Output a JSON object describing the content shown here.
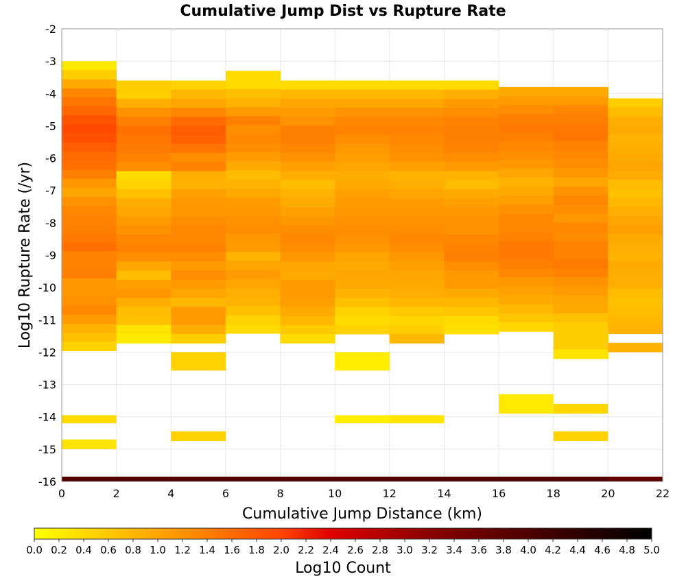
{
  "chart_data": {
    "type": "heatmap",
    "title": "Cumulative Jump Dist vs Rupture Rate",
    "xlabel": "Cumulative Jump Distance (km)",
    "ylabel": "Log10 Rupture Rate (/yr)",
    "xlim": [
      0,
      22
    ],
    "ylim": [
      -16,
      -2
    ],
    "x_ticks": [
      0,
      2,
      4,
      6,
      8,
      10,
      12,
      14,
      16,
      18,
      20,
      22
    ],
    "y_ticks": [
      -2,
      -3,
      -4,
      -5,
      -6,
      -7,
      -8,
      -9,
      -10,
      -11,
      -12,
      -13,
      -14,
      -15,
      -16
    ],
    "grid": true,
    "colorbar": {
      "label": "Log10 Count",
      "range": [
        0,
        5
      ],
      "ticks": [
        "0.0",
        "0.2",
        "0.4",
        "0.6",
        "0.8",
        "1.0",
        "1.2",
        "1.4",
        "1.6",
        "1.8",
        "2.0",
        "2.2",
        "2.4",
        "2.6",
        "2.8",
        "3.0",
        "3.2",
        "3.4",
        "3.6",
        "3.8",
        "4.0",
        "4.2",
        "4.4",
        "4.6",
        "4.8",
        "5.0"
      ],
      "stops": [
        {
          "v": 0.0,
          "c": "#ffff00"
        },
        {
          "v": 1.0,
          "c": "#ffa500"
        },
        {
          "v": 2.0,
          "c": "#ff4500"
        },
        {
          "v": 2.4,
          "c": "#e00000"
        },
        {
          "v": 3.2,
          "c": "#8b0000"
        },
        {
          "v": 5.0,
          "c": "#000000"
        }
      ]
    },
    "column_width_km": 2,
    "bin_height_log": 0.28,
    "columns": [
      {
        "x0": 0,
        "y_top": -3.0,
        "values": [
          0.25,
          0.55,
          0.95,
          1.3,
          1.5,
          1.65,
          1.85,
          1.95,
          1.9,
          1.75,
          1.6,
          1.55,
          1.4,
          1.15,
          1.0,
          1.2,
          1.3,
          1.35,
          1.4,
          1.45,
          1.55,
          1.35,
          1.35,
          1.4,
          1.15,
          1.15,
          1.2,
          1.3,
          1.1,
          0.85,
          0.7,
          0.5
        ]
      },
      {
        "x0": 2,
        "y_top": -3.6,
        "values": [
          0.55,
          0.55,
          0.9,
          1.2,
          1.4,
          1.55,
          1.5,
          1.45,
          1.35,
          1.25,
          0.4,
          0.5,
          0.7,
          0.9,
          1.0,
          1.1,
          1.2,
          1.3,
          1.35,
          1.25,
          1.0,
          0.75,
          1.05,
          1.15,
          0.9,
          0.75,
          0.7,
          0.3,
          0.25
        ]
      },
      {
        "x0": 4,
        "y_top": -3.6,
        "values": [
          0.5,
          0.8,
          1.0,
          1.3,
          1.6,
          1.75,
          1.7,
          1.5,
          1.25,
          1.35,
          0.9,
          0.85,
          1.05,
          1.15,
          1.15,
          1.25,
          1.3,
          1.3,
          1.35,
          1.25,
          1.1,
          1.25,
          1.1,
          1.0,
          0.8,
          1.1,
          1.1,
          0.9,
          0.55,
          null,
          0.5,
          0.5
        ]
      },
      {
        "x0": 6,
        "y_top": -3.3,
        "values": [
          0.4,
          0.4,
          0.7,
          0.85,
          1.1,
          1.4,
          1.25,
          1.3,
          1.25,
          1.1,
          0.95,
          0.75,
          0.85,
          0.95,
          1.1,
          1.15,
          1.2,
          1.25,
          1.15,
          1.1,
          0.85,
          1.0,
          1.1,
          1.0,
          0.9,
          0.85,
          0.7,
          0.5,
          0.4
        ]
      },
      {
        "x0": 8,
        "y_top": -3.6,
        "values": [
          0.4,
          0.8,
          1.0,
          1.1,
          1.2,
          1.4,
          1.4,
          1.3,
          1.2,
          1.05,
          0.9,
          0.75,
          0.85,
          0.95,
          1.05,
          1.15,
          1.25,
          1.3,
          1.25,
          1.15,
          1.0,
          0.95,
          1.1,
          1.1,
          1.05,
          0.95,
          0.8,
          0.6,
          0.4
        ]
      },
      {
        "x0": 10,
        "y_top": -3.6,
        "values": [
          0.4,
          0.8,
          1.0,
          1.2,
          1.3,
          1.35,
          1.25,
          1.15,
          1.05,
          1.0,
          0.9,
          0.95,
          1.05,
          1.1,
          1.15,
          1.2,
          1.25,
          1.2,
          1.15,
          1.0,
          0.95,
          1.0,
          0.95,
          0.85,
          0.7,
          0.5,
          0.4,
          0.5,
          null,
          null,
          0.2,
          0.2
        ]
      },
      {
        "x0": 12,
        "y_top": -3.6,
        "values": [
          0.4,
          0.8,
          1.0,
          1.2,
          1.3,
          1.35,
          1.3,
          1.25,
          1.2,
          1.05,
          0.85,
          0.9,
          1.0,
          1.1,
          1.15,
          1.2,
          1.25,
          1.3,
          1.25,
          1.15,
          1.05,
          1.0,
          0.95,
          0.9,
          0.8,
          0.6,
          0.45,
          0.55,
          0.8
        ]
      },
      {
        "x0": 14,
        "y_top": -3.6,
        "values": [
          0.4,
          0.9,
          1.1,
          1.25,
          1.35,
          1.4,
          1.4,
          1.35,
          1.25,
          1.1,
          0.85,
          0.75,
          0.95,
          1.05,
          1.15,
          1.2,
          1.2,
          1.3,
          1.35,
          1.4,
          1.25,
          1.1,
          1.1,
          0.95,
          0.8,
          0.65,
          0.4,
          0.35
        ]
      },
      {
        "x0": 16,
        "y_top": -3.8,
        "values": [
          0.95,
          1.1,
          1.25,
          1.4,
          1.45,
          1.4,
          1.3,
          1.25,
          1.15,
          1.0,
          0.85,
          0.95,
          1.05,
          1.2,
          1.3,
          1.3,
          1.35,
          1.45,
          1.45,
          1.4,
          1.3,
          1.15,
          1.05,
          0.95,
          0.8,
          0.65,
          0.45
        ]
      },
      {
        "x0": 18,
        "y_top": -3.8,
        "values": [
          0.95,
          1.1,
          1.3,
          1.4,
          1.45,
          1.5,
          1.35,
          1.3,
          1.25,
          1.15,
          1.0,
          1.2,
          1.3,
          1.25,
          1.15,
          1.3,
          1.25,
          1.35,
          1.35,
          1.45,
          1.35,
          1.2,
          1.1,
          1.0,
          0.95,
          0.7,
          0.55,
          0.55,
          0.55,
          0.3
        ]
      },
      {
        "x0": 20,
        "y_top": -4.15,
        "values": [
          0.55,
          0.75,
          0.9,
          0.95,
          0.85,
          0.9,
          0.95,
          1.0,
          0.95,
          0.75,
          0.7,
          0.8,
          0.9,
          1.0,
          1.05,
          0.95,
          0.9,
          0.85,
          0.95,
          0.9,
          0.9,
          0.75,
          0.7,
          0.75,
          0.8,
          0.85,
          null,
          0.85
        ]
      }
    ],
    "isolated_cells": [
      {
        "x0": 0,
        "y_top": -13.95,
        "y_bottom": -14.2,
        "value": 0.4
      },
      {
        "x0": 0,
        "y_top": -14.7,
        "y_bottom": -15.0,
        "value": 0.3
      },
      {
        "x0": 4,
        "y_top": -14.45,
        "y_bottom": -14.75,
        "value": 0.5
      },
      {
        "x0": 10,
        "y_top": -13.95,
        "y_bottom": -14.2,
        "value": 0.2
      },
      {
        "x0": 12,
        "y_top": -13.95,
        "y_bottom": -14.2,
        "value": 0.3
      },
      {
        "x0": 16,
        "y_top": -13.3,
        "y_bottom": -13.9,
        "value": 0.25
      },
      {
        "x0": 18,
        "y_top": -13.6,
        "y_bottom": -13.9,
        "value": 0.45
      },
      {
        "x0": 18,
        "y_top": -14.45,
        "y_bottom": -14.75,
        "value": 0.5
      }
    ],
    "bottom_row": {
      "y_top": -15.85,
      "y_bottom": -16.0,
      "values": [
        3.95,
        3.95,
        3.95,
        3.95,
        3.95,
        3.95,
        3.95,
        3.95,
        3.95,
        3.95,
        3.75
      ]
    }
  }
}
